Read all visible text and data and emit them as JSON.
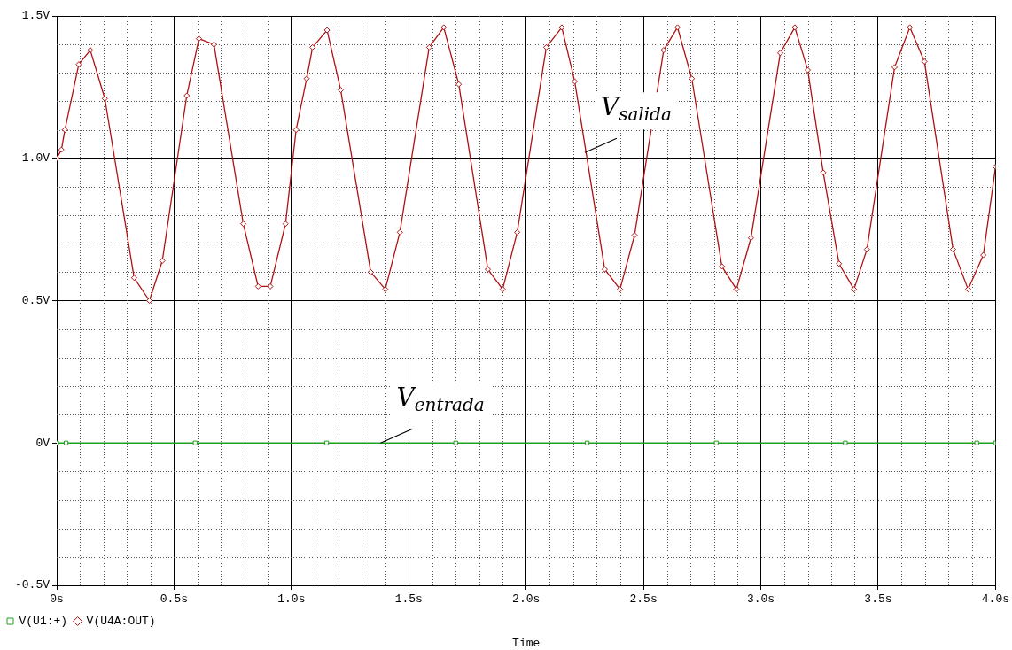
{
  "chart_data": {
    "type": "line",
    "xlabel": "Time",
    "xlim": [
      0,
      4
    ],
    "xticks": [
      {
        "value": 0,
        "label": "0s"
      },
      {
        "value": 0.5,
        "label": "0.5s"
      },
      {
        "value": 1,
        "label": "1.0s"
      },
      {
        "value": 1.5,
        "label": "1.5s"
      },
      {
        "value": 2,
        "label": "2.0s"
      },
      {
        "value": 2.5,
        "label": "2.5s"
      },
      {
        "value": 3,
        "label": "3.0s"
      },
      {
        "value": 3.5,
        "label": "3.5s"
      },
      {
        "value": 4,
        "label": "4.0s"
      }
    ],
    "ylim": [
      -0.5,
      1.5
    ],
    "yticks": [
      {
        "value": -0.5,
        "label": "-0.5V"
      },
      {
        "value": 0,
        "label": "0V"
      },
      {
        "value": 0.5,
        "label": "0.5V"
      },
      {
        "value": 1,
        "label": "1.0V"
      },
      {
        "value": 1.5,
        "label": "1.5V"
      }
    ],
    "grid": true,
    "legend": "bottom left",
    "series": [
      {
        "name": "V(U1:+)",
        "color": "#22a022",
        "marker": "square",
        "x": [
          0,
          0.04,
          0.59,
          1.15,
          1.7,
          2.26,
          2.81,
          3.36,
          3.92,
          4
        ],
        "values": [
          0,
          0,
          0,
          0,
          0,
          0,
          0,
          0,
          0,
          0
        ]
      },
      {
        "name": "V(U4A:OUT)",
        "color": "#b01010",
        "marker": "diamond",
        "x": [
          0,
          0.02,
          0.035,
          0.094,
          0.143,
          0.205,
          0.33,
          0.395,
          0.45,
          0.554,
          0.606,
          0.67,
          0.795,
          0.858,
          0.91,
          0.975,
          1.02,
          1.065,
          1.09,
          1.152,
          1.21,
          1.338,
          1.4,
          1.462,
          1.587,
          1.649,
          1.713,
          1.837,
          1.9,
          1.962,
          2.086,
          2.152,
          2.207,
          2.335,
          2.4,
          2.462,
          2.586,
          2.645,
          2.706,
          2.834,
          2.896,
          2.958,
          3.083,
          3.145,
          3.2,
          3.266,
          3.333,
          3.397,
          3.452,
          3.57,
          3.635,
          3.697,
          3.819,
          3.883,
          3.948,
          4
        ],
        "values": [
          1.0,
          1.03,
          1.1,
          1.33,
          1.38,
          1.21,
          0.58,
          0.5,
          0.64,
          1.22,
          1.42,
          1.4,
          0.77,
          0.55,
          0.55,
          0.77,
          1.1,
          1.28,
          1.39,
          1.45,
          1.24,
          0.6,
          0.54,
          0.74,
          1.39,
          1.46,
          1.26,
          0.61,
          0.54,
          0.74,
          1.39,
          1.46,
          1.27,
          0.61,
          0.54,
          0.73,
          1.38,
          1.46,
          1.28,
          0.62,
          0.54,
          0.72,
          1.37,
          1.46,
          1.31,
          0.95,
          0.63,
          0.54,
          0.68,
          1.32,
          1.46,
          1.34,
          0.68,
          0.54,
          0.66,
          0.97
        ]
      }
    ],
    "annotations": [
      {
        "text": "V$_{salida}$",
        "x": 2.25,
        "y": 1.02
      },
      {
        "text": "V$_{entrada}$",
        "x": 1.38,
        "y": 0
      }
    ]
  }
}
